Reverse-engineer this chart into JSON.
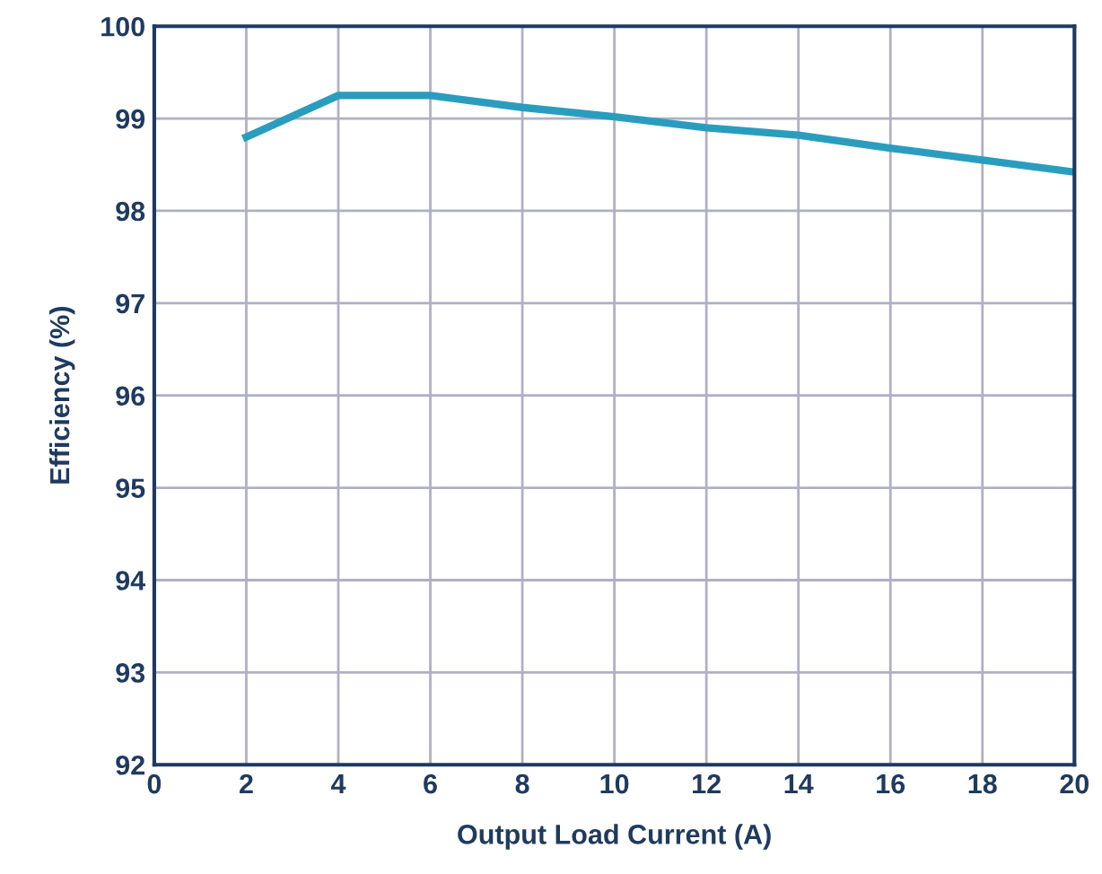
{
  "chart_data": {
    "type": "line",
    "xlabel": "Output Load Current (A)",
    "ylabel": "Efficiency (%)",
    "x": [
      2,
      4,
      6,
      8,
      10,
      12,
      14,
      16,
      18,
      20
    ],
    "series": [
      {
        "color": "#2a9dbf",
        "values": [
          98.8,
          99.25,
          99.25,
          99.12,
          99.02,
          98.9,
          98.82,
          98.68,
          98.55,
          98.42
        ]
      }
    ],
    "xlim": [
      0,
      20
    ],
    "xticks": [
      0,
      2,
      4,
      6,
      8,
      10,
      12,
      14,
      16,
      18,
      20
    ],
    "ylim": [
      92,
      100
    ],
    "yticks": [
      92,
      93,
      94,
      95,
      96,
      97,
      98,
      99,
      100
    ],
    "grid": true,
    "marker": "none",
    "line_style": "solid"
  }
}
